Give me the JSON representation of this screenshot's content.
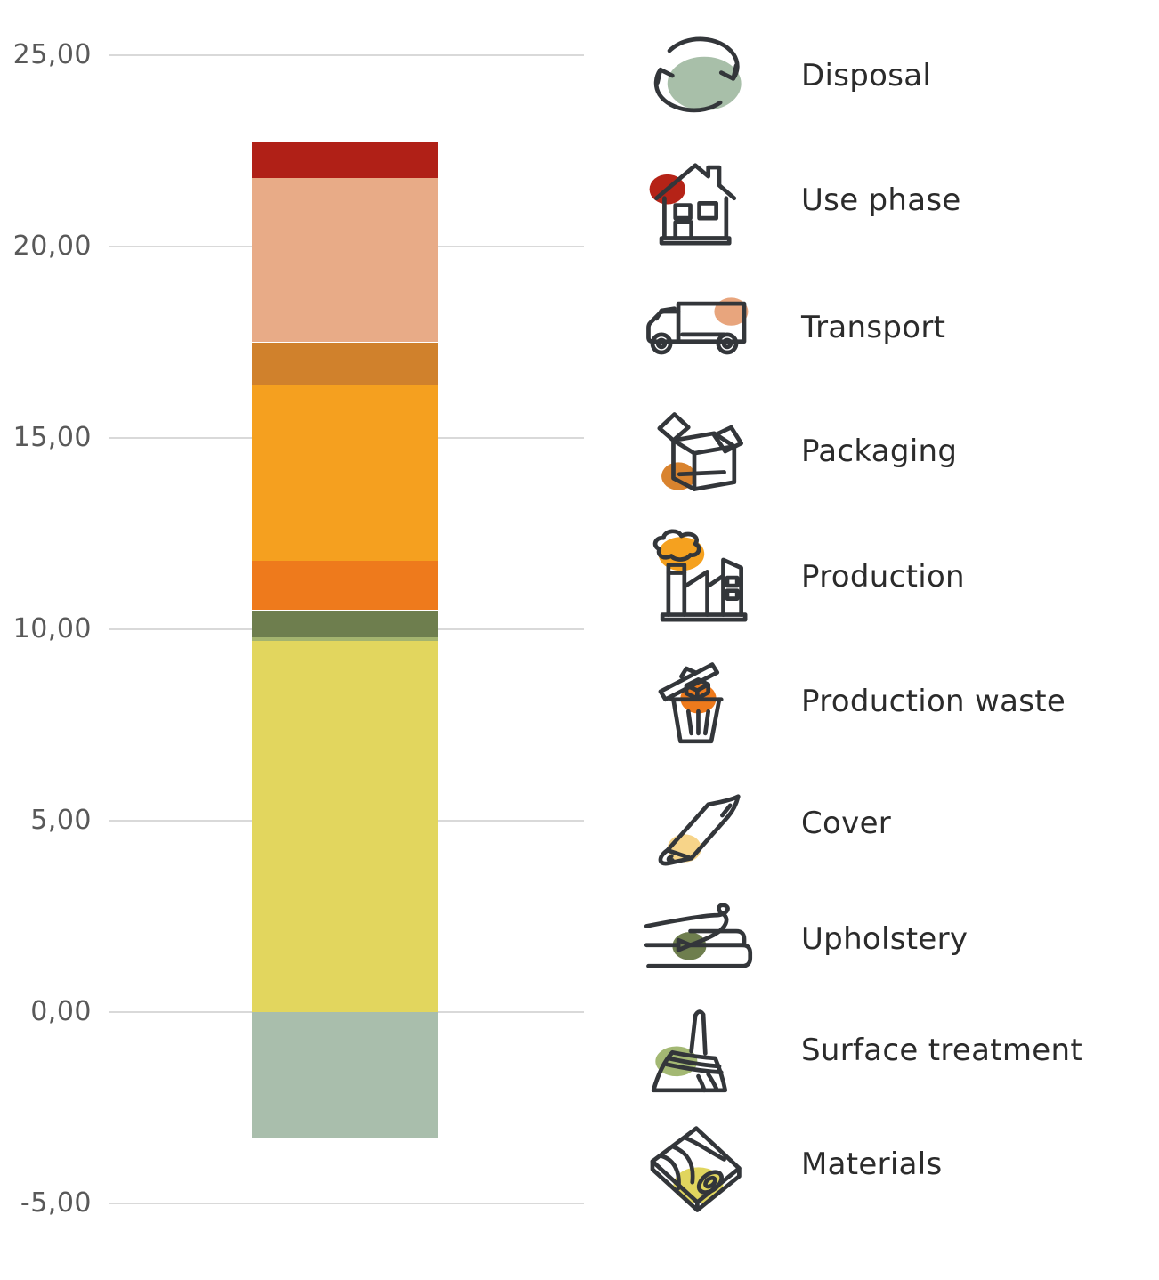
{
  "chart": {
    "y_axis": {
      "ticks": [
        {
          "value": 25,
          "label": "25,00"
        },
        {
          "value": 20,
          "label": "20,00"
        },
        {
          "value": 15,
          "label": "15,00"
        },
        {
          "value": 10,
          "label": "10,00"
        },
        {
          "value": 5,
          "label": "5,00"
        },
        {
          "value": 0,
          "label": "0,00"
        },
        {
          "value": -5,
          "label": "-5,00"
        }
      ]
    }
  },
  "chart_data": {
    "type": "bar",
    "subtype": "single-stacked-column-with-negative",
    "stack_order": "bottom-to-top",
    "title": "",
    "xlabel": "",
    "ylabel": "",
    "ylim": [
      -5,
      25
    ],
    "grid": true,
    "legend_position": "right",
    "decimal_format": "comma",
    "series": [
      {
        "name": "Disposal",
        "value": -3.3,
        "color": "#a9beac"
      },
      {
        "name": "Materials",
        "value": 9.7,
        "color": "#e2d65e"
      },
      {
        "name": "Surface treatment",
        "value": 0.1,
        "color": "#a4b46f"
      },
      {
        "name": "Upholstery",
        "value": 0.7,
        "color": "#6e7e4e"
      },
      {
        "name": "Cover",
        "value": 0.0,
        "color": "#f7d489"
      },
      {
        "name": "Production waste",
        "value": 1.3,
        "color": "#ee7a1c"
      },
      {
        "name": "Production",
        "value": 4.6,
        "color": "#f5a01f"
      },
      {
        "name": "Packaging",
        "value": 1.1,
        "color": "#d0812c"
      },
      {
        "name": "Transport",
        "value": 4.3,
        "color": "#e8ab87"
      },
      {
        "name": "Use phase",
        "value": 0.95,
        "color": "#b02017"
      }
    ]
  },
  "legend": {
    "items": [
      {
        "label": "Disposal",
        "icon": "recycle-arrows",
        "blob_color": "#a8bfa9"
      },
      {
        "label": "Use phase",
        "icon": "house",
        "blob_color": "#b52317"
      },
      {
        "label": "Transport",
        "icon": "truck",
        "blob_color": "#e8a57d"
      },
      {
        "label": "Packaging",
        "icon": "open-box",
        "blob_color": "#d9832e"
      },
      {
        "label": "Production",
        "icon": "factory",
        "blob_color": "#f5a11f"
      },
      {
        "label": "Production waste",
        "icon": "trash-bin",
        "blob_color": "#ee7a1c"
      },
      {
        "label": "Cover",
        "icon": "folded-fabric",
        "blob_color": "#f7d489"
      },
      {
        "label": "Upholstery",
        "icon": "mattress-needle",
        "blob_color": "#6e7e4e"
      },
      {
        "label": "Surface treatment",
        "icon": "paint-brush",
        "blob_color": "#a3b873"
      },
      {
        "label": "Materials",
        "icon": "wood-plank",
        "blob_color": "#e0d55e"
      }
    ]
  },
  "colors": {
    "grid_line": "#d9d9d9",
    "axis_label": "#595959",
    "legend_label": "#2b2b2b",
    "icon_stroke": "#33363a",
    "background": "#ffffff"
  }
}
